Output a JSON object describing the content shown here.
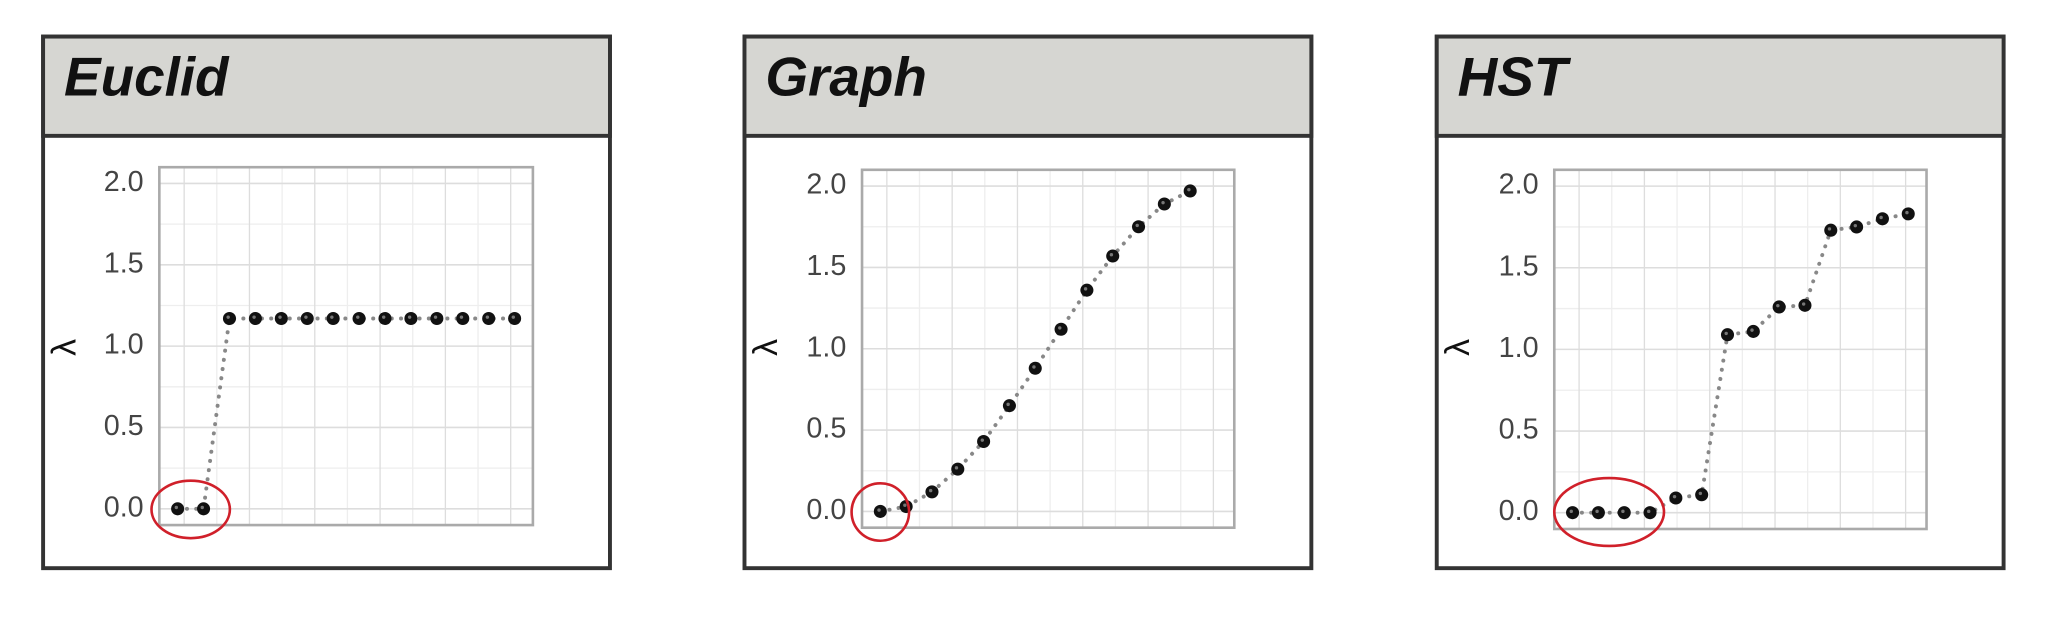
{
  "chart_data": [
    {
      "type": "line",
      "title": "Euclid",
      "ylabel": "λ",
      "color": "#111111",
      "line_color": "#888888",
      "values": [
        0,
        0,
        1.17,
        1.17,
        1.17,
        1.17,
        1.17,
        1.17,
        1.17,
        1.17,
        1.17,
        1.17,
        1.17,
        1.17
      ],
      "ylim": [
        -0.1,
        2.1
      ],
      "yticks": [
        {
          "value": 0,
          "label": "0.0"
        },
        {
          "value": 0.5,
          "label": "0.5"
        },
        {
          "value": 1,
          "label": "1.0"
        },
        {
          "value": 1.5,
          "label": "1.5"
        },
        {
          "value": 2,
          "label": "2.0"
        }
      ],
      "grid": true
    },
    {
      "type": "line",
      "title": "Graph",
      "ylabel": "λ",
      "color": "#111111",
      "line_color": "#888888",
      "values": [
        0,
        0.03,
        0.12,
        0.26,
        0.43,
        0.65,
        0.88,
        1.12,
        1.36,
        1.57,
        1.75,
        1.89,
        1.97
      ],
      "ylim": [
        -0.1,
        2.1
      ],
      "yticks": [
        {
          "value": 0,
          "label": "0.0"
        },
        {
          "value": 0.5,
          "label": "0.5"
        },
        {
          "value": 1,
          "label": "1.0"
        },
        {
          "value": 1.5,
          "label": "1.5"
        },
        {
          "value": 2,
          "label": "2.0"
        }
      ],
      "grid": true
    },
    {
      "type": "line",
      "title": "HST",
      "ylabel": "λ",
      "color": "#111111",
      "line_color": "#888888",
      "values": [
        0,
        0,
        0,
        0,
        0.09,
        0.11,
        1.09,
        1.11,
        1.26,
        1.27,
        1.73,
        1.75,
        1.8,
        1.83
      ],
      "ylim": [
        -0.1,
        2.1
      ],
      "yticks": [
        {
          "value": 0,
          "label": "0.0"
        },
        {
          "value": 0.5,
          "label": "0.5"
        },
        {
          "value": 1,
          "label": "1.0"
        },
        {
          "value": 1.5,
          "label": "1.5"
        },
        {
          "value": 2,
          "label": "2.0"
        }
      ],
      "grid": true
    }
  ]
}
